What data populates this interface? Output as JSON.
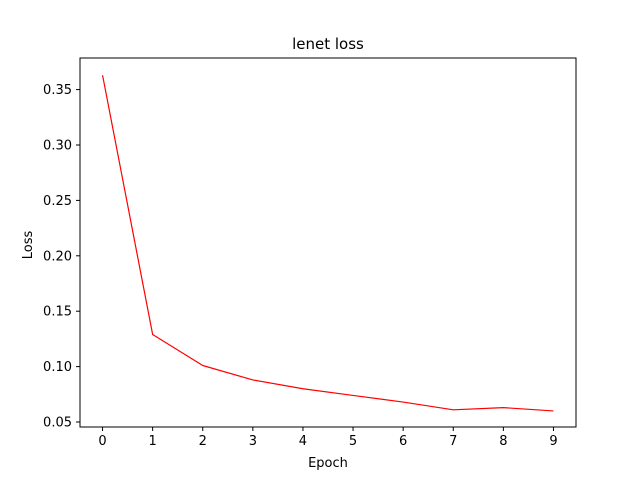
{
  "chart_data": {
    "type": "line",
    "title": "lenet loss",
    "xlabel": "Epoch",
    "ylabel": "Loss",
    "x": [
      0,
      1,
      2,
      3,
      4,
      5,
      6,
      7,
      8,
      9
    ],
    "series": [
      {
        "values": [
          0.363,
          0.129,
          0.101,
          0.088,
          0.08,
          0.074,
          0.068,
          0.061,
          0.063,
          0.06
        ],
        "color": "#ff0000"
      }
    ],
    "x_ticks": [
      0,
      1,
      2,
      3,
      4,
      5,
      6,
      7,
      8,
      9
    ],
    "x_tick_labels": [
      "0",
      "1",
      "2",
      "3",
      "4",
      "5",
      "6",
      "7",
      "8",
      "9"
    ],
    "y_ticks": [
      0.05,
      0.1,
      0.15,
      0.2,
      0.25,
      0.3,
      0.35
    ],
    "y_tick_labels": [
      "0.05",
      "0.10",
      "0.15",
      "0.20",
      "0.25",
      "0.30",
      "0.35"
    ],
    "xlim": [
      -0.45,
      9.45
    ],
    "ylim": [
      0.0455,
      0.3785
    ],
    "grid": false,
    "legend": "none"
  }
}
